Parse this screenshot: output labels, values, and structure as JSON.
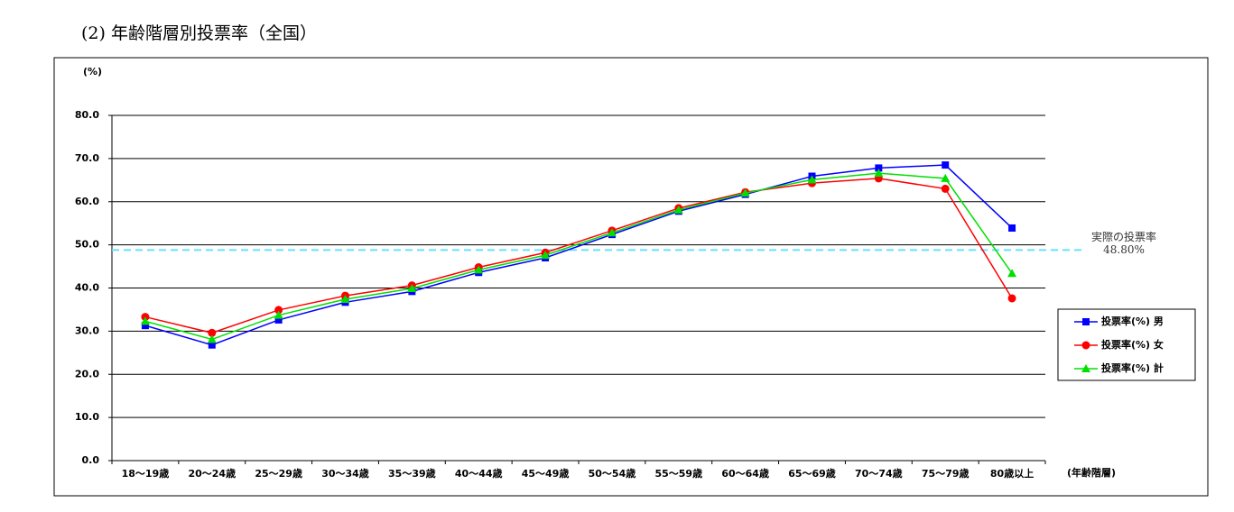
{
  "chart_data": {
    "type": "line",
    "title": "(2) 年齢階層別投票率（全国）",
    "ylabel": "(%)",
    "xlabel": "(年齢階層)",
    "categories": [
      "18～19歳",
      "20～24歳",
      "25～29歳",
      "30～34歳",
      "35～39歳",
      "40～44歳",
      "45～49歳",
      "50～54歳",
      "55～59歳",
      "60～64歳",
      "65～69歳",
      "70～74歳",
      "75～79歳",
      "80歳以上"
    ],
    "series": [
      {
        "name": "投票率(%) 男",
        "color": "#0000ff",
        "marker": "square",
        "values": [
          31.3,
          26.8,
          32.6,
          36.7,
          39.2,
          43.6,
          47.0,
          52.4,
          57.8,
          61.7,
          65.9,
          67.8,
          68.5,
          53.9
        ]
      },
      {
        "name": "投票率(%) 女",
        "color": "#ff0000",
        "marker": "circle",
        "values": [
          33.3,
          29.6,
          34.9,
          38.2,
          40.6,
          44.8,
          48.2,
          53.3,
          58.5,
          62.2,
          64.3,
          65.4,
          63.0,
          37.6
        ]
      },
      {
        "name": "投票率(%) 計",
        "color": "#00e000",
        "marker": "triangle",
        "values": [
          32.3,
          28.1,
          33.7,
          37.4,
          39.9,
          44.2,
          47.6,
          52.8,
          58.1,
          62.0,
          65.1,
          66.6,
          65.4,
          43.4
        ]
      }
    ],
    "ylim": [
      0,
      80
    ],
    "yticks": [
      {
        "value": 0,
        "label": "0.0"
      },
      {
        "value": 10,
        "label": "10.0"
      },
      {
        "value": 20,
        "label": "20.0"
      },
      {
        "value": 30,
        "label": "30.0"
      },
      {
        "value": 40,
        "label": "40.0"
      },
      {
        "value": 50,
        "label": "50.0"
      },
      {
        "value": 60,
        "label": "60.0"
      },
      {
        "value": 70,
        "label": "70.0"
      },
      {
        "value": 80,
        "label": "80.0"
      }
    ],
    "grid": true,
    "legend": "right",
    "reference_line": {
      "label": "実際の投票率",
      "value": 48.8,
      "value_label": "48.80%",
      "color": "#66e0ff"
    }
  }
}
